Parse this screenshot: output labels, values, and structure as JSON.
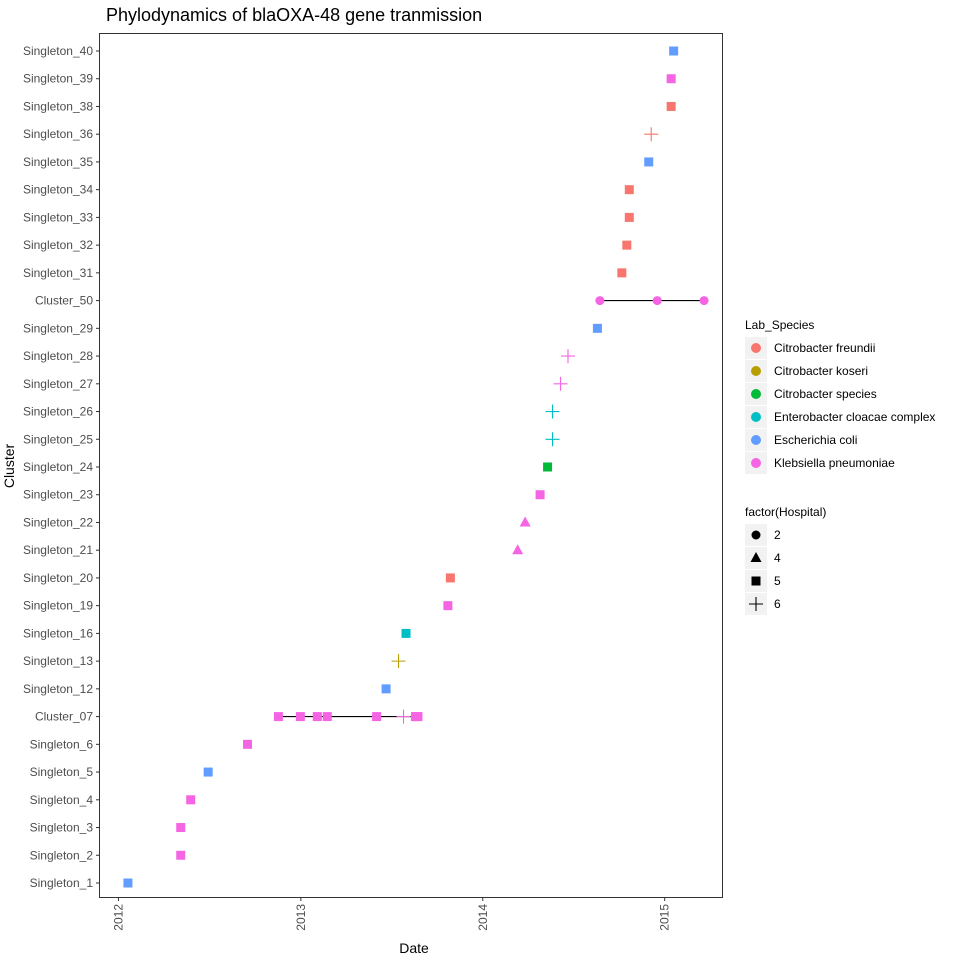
{
  "chart_data": {
    "type": "scatter",
    "title": "Phylodynamics of blaOXA-48 gene tranmission",
    "xlabel": "Date",
    "ylabel": "Cluster",
    "xlim": [
      "2011-11-25",
      "2015-04-26"
    ],
    "x_ticks": [
      "2012",
      "2013",
      "2014",
      "2015"
    ],
    "grid": false,
    "clusters": [
      "Singleton_1",
      "Singleton_2",
      "Singleton_3",
      "Singleton_4",
      "Singleton_5",
      "Singleton_6",
      "Cluster_07",
      "Singleton_12",
      "Singleton_13",
      "Singleton_16",
      "Singleton_19",
      "Singleton_20",
      "Singleton_21",
      "Singleton_22",
      "Singleton_23",
      "Singleton_24",
      "Singleton_25",
      "Singleton_26",
      "Singleton_27",
      "Singleton_28",
      "Singleton_29",
      "Cluster_50",
      "Singleton_31",
      "Singleton_32",
      "Singleton_33",
      "Singleton_34",
      "Singleton_35",
      "Singleton_36",
      "Singleton_38",
      "Singleton_39",
      "Singleton_40"
    ],
    "legend": {
      "placement": "right",
      "colour": {
        "title": "Lab_Species",
        "entries": [
          {
            "label": "Citrobacter freundii",
            "color": "#f8766d"
          },
          {
            "label": "Citrobacter koseri",
            "color": "#b79f00"
          },
          {
            "label": "Citrobacter species",
            "color": "#00ba38"
          },
          {
            "label": "Enterobacter cloacae complex",
            "color": "#00bfc4"
          },
          {
            "label": "Escherichia coli",
            "color": "#619cff"
          },
          {
            "label": "Klebsiella pneumoniae",
            "color": "#f564e3"
          }
        ]
      },
      "shape": {
        "title": "factor(Hospital)",
        "entries": [
          {
            "label": "2",
            "shape": "circle"
          },
          {
            "label": "4",
            "shape": "triangle"
          },
          {
            "label": "5",
            "shape": "square"
          },
          {
            "label": "6",
            "shape": "plus"
          }
        ]
      }
    },
    "points": [
      {
        "cluster": "Singleton_1",
        "date": "2012-01-20",
        "species": "Escherichia coli",
        "hospital": "5"
      },
      {
        "cluster": "Singleton_2",
        "date": "2012-05-05",
        "species": "Klebsiella pneumoniae",
        "hospital": "5"
      },
      {
        "cluster": "Singleton_3",
        "date": "2012-05-05",
        "species": "Klebsiella pneumoniae",
        "hospital": "5"
      },
      {
        "cluster": "Singleton_4",
        "date": "2012-05-25",
        "species": "Klebsiella pneumoniae",
        "hospital": "5"
      },
      {
        "cluster": "Singleton_5",
        "date": "2012-06-29",
        "species": "Escherichia coli",
        "hospital": "5"
      },
      {
        "cluster": "Singleton_6",
        "date": "2012-09-16",
        "species": "Klebsiella pneumoniae",
        "hospital": "5"
      },
      {
        "cluster": "Cluster_07",
        "date": "2012-11-17",
        "species": "Klebsiella pneumoniae",
        "hospital": "5"
      },
      {
        "cluster": "Cluster_07",
        "date": "2012-12-31",
        "species": "Klebsiella pneumoniae",
        "hospital": "5"
      },
      {
        "cluster": "Cluster_07",
        "date": "2013-02-03",
        "species": "Klebsiella pneumoniae",
        "hospital": "5"
      },
      {
        "cluster": "Cluster_07",
        "date": "2013-02-23",
        "species": "Klebsiella pneumoniae",
        "hospital": "5"
      },
      {
        "cluster": "Cluster_07",
        "date": "2013-06-02",
        "species": "Klebsiella pneumoniae",
        "hospital": "5"
      },
      {
        "cluster": "Cluster_07",
        "date": "2013-07-26",
        "species": "Klebsiella pneumoniae",
        "hospital": "6"
      },
      {
        "cluster": "Cluster_07",
        "date": "2013-08-19",
        "species": "Klebsiella pneumoniae",
        "hospital": "5"
      },
      {
        "cluster": "Cluster_07",
        "date": "2013-08-24",
        "species": "Klebsiella pneumoniae",
        "hospital": "5"
      },
      {
        "cluster": "Singleton_12",
        "date": "2013-06-21",
        "species": "Escherichia coli",
        "hospital": "5"
      },
      {
        "cluster": "Singleton_13",
        "date": "2013-07-16",
        "species": "Citrobacter koseri",
        "hospital": "6"
      },
      {
        "cluster": "Singleton_16",
        "date": "2013-07-31",
        "species": "Enterobacter cloacae complex",
        "hospital": "5"
      },
      {
        "cluster": "Singleton_19",
        "date": "2013-10-23",
        "species": "Klebsiella pneumoniae",
        "hospital": "5"
      },
      {
        "cluster": "Singleton_20",
        "date": "2013-10-28",
        "species": "Citrobacter freundii",
        "hospital": "5"
      },
      {
        "cluster": "Singleton_21",
        "date": "2014-03-12",
        "species": "Klebsiella pneumoniae",
        "hospital": "4"
      },
      {
        "cluster": "Singleton_22",
        "date": "2014-03-27",
        "species": "Klebsiella pneumoniae",
        "hospital": "4"
      },
      {
        "cluster": "Singleton_23",
        "date": "2014-04-26",
        "species": "Klebsiella pneumoniae",
        "hospital": "5"
      },
      {
        "cluster": "Singleton_24",
        "date": "2014-05-11",
        "species": "Citrobacter species",
        "hospital": "5"
      },
      {
        "cluster": "Singleton_25",
        "date": "2014-05-21",
        "species": "Enterobacter cloacae complex",
        "hospital": "6"
      },
      {
        "cluster": "Singleton_26",
        "date": "2014-05-21",
        "species": "Enterobacter cloacae complex",
        "hospital": "6"
      },
      {
        "cluster": "Singleton_27",
        "date": "2014-06-06",
        "species": "Klebsiella pneumoniae",
        "hospital": "6"
      },
      {
        "cluster": "Singleton_28",
        "date": "2014-06-21",
        "species": "Klebsiella pneumoniae",
        "hospital": "6"
      },
      {
        "cluster": "Singleton_29",
        "date": "2014-08-19",
        "species": "Escherichia coli",
        "hospital": "5"
      },
      {
        "cluster": "Cluster_50",
        "date": "2014-08-24",
        "species": "Klebsiella pneumoniae",
        "hospital": "2"
      },
      {
        "cluster": "Cluster_50",
        "date": "2014-12-17",
        "species": "Klebsiella pneumoniae",
        "hospital": "2"
      },
      {
        "cluster": "Cluster_50",
        "date": "2015-03-21",
        "species": "Klebsiella pneumoniae",
        "hospital": "2"
      },
      {
        "cluster": "Singleton_31",
        "date": "2014-10-07",
        "species": "Citrobacter freundii",
        "hospital": "5"
      },
      {
        "cluster": "Singleton_32",
        "date": "2014-10-17",
        "species": "Citrobacter freundii",
        "hospital": "5"
      },
      {
        "cluster": "Singleton_33",
        "date": "2014-10-22",
        "species": "Citrobacter freundii",
        "hospital": "5"
      },
      {
        "cluster": "Singleton_34",
        "date": "2014-10-22",
        "species": "Citrobacter freundii",
        "hospital": "5"
      },
      {
        "cluster": "Singleton_35",
        "date": "2014-11-30",
        "species": "Escherichia coli",
        "hospital": "5"
      },
      {
        "cluster": "Singleton_36",
        "date": "2014-12-05",
        "species": "Citrobacter freundii",
        "hospital": "6"
      },
      {
        "cluster": "Singleton_38",
        "date": "2015-01-14",
        "species": "Citrobacter freundii",
        "hospital": "5"
      },
      {
        "cluster": "Singleton_39",
        "date": "2015-01-14",
        "species": "Klebsiella pneumoniae",
        "hospital": "5"
      },
      {
        "cluster": "Singleton_40",
        "date": "2015-01-19",
        "species": "Escherichia coli",
        "hospital": "5"
      }
    ]
  }
}
